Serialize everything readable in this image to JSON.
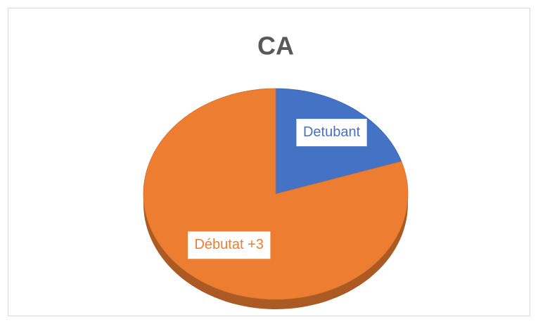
{
  "chart_data": {
    "type": "pie",
    "title": "CA",
    "categories": [
      "Detubant",
      "Débutat +3"
    ],
    "values": [
      20,
      80
    ],
    "colors": [
      "#4472c4",
      "#ed7d31"
    ],
    "data_labels": true
  }
}
